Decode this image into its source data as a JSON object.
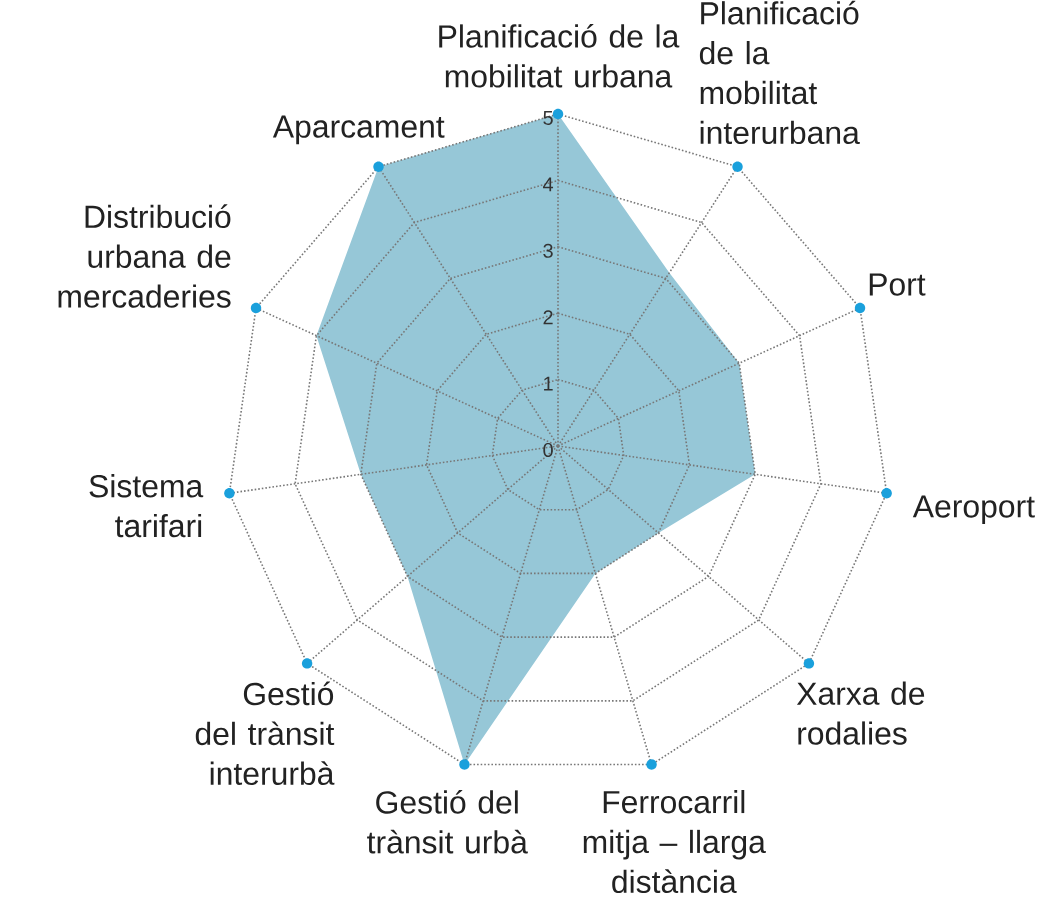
{
  "chart_data": {
    "type": "radar",
    "categories": [
      "Planificació de la mobilitat urbana",
      "Planificació de la mobilitat interurbana",
      "Port",
      "Aeroport",
      "Xarxa de rodalies",
      "Ferrocarril mitja – llarga distància",
      "Gestió del trànsit urbà",
      "Gestió del trànsit interurbà",
      "Sistema tarifari",
      "Distribució urbana de mercaderies",
      "Aparcament"
    ],
    "series": [
      {
        "color": "#96c7d7",
        "values": [
          5,
          3.1,
          3,
          3,
          2,
          2,
          5,
          3,
          3,
          4,
          5
        ]
      }
    ],
    "ylim": [
      0,
      5
    ],
    "yticks": [
      0,
      1,
      2,
      3,
      4,
      5
    ],
    "grid": true
  }
}
